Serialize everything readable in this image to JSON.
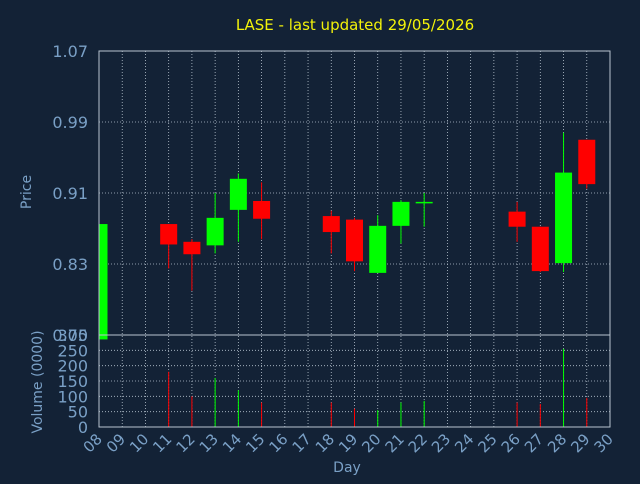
{
  "chart_data": {
    "type": "candlestick",
    "title": "LASE - last updated 29/05/2026",
    "price_panel": {
      "ylabel": "Price",
      "ylim": [
        0.75,
        1.07
      ],
      "yticks": [
        "1.07",
        "0.99",
        "0.91",
        "0.83",
        "0.75"
      ],
      "ytick_values": [
        1.07,
        0.99,
        0.91,
        0.83,
        0.75
      ],
      "grid": true
    },
    "volume_panel": {
      "ylabel": "Volume (0000)",
      "ylim": [
        0,
        300
      ],
      "yticks": [
        "300",
        "250",
        "200",
        "150",
        "100",
        "50",
        "0"
      ],
      "ytick_values": [
        300,
        250,
        200,
        150,
        100,
        50,
        0
      ],
      "grid": true
    },
    "xlabel": "Day",
    "x_ticks": [
      "08",
      "09",
      "10",
      "11",
      "12",
      "13",
      "14",
      "15",
      "16",
      "17",
      "18",
      "19",
      "20",
      "21",
      "22",
      "23",
      "24",
      "25",
      "26",
      "27",
      "28",
      "29",
      "30"
    ],
    "candles": [
      {
        "day": "08",
        "open": 0.745,
        "high": 0.875,
        "low": 0.745,
        "close": 0.875,
        "volume": 0
      },
      {
        "day": "11",
        "open": 0.875,
        "high": 0.875,
        "low": 0.825,
        "close": 0.852,
        "volume": 180
      },
      {
        "day": "12",
        "open": 0.855,
        "high": 0.858,
        "low": 0.8,
        "close": 0.841,
        "volume": 100
      },
      {
        "day": "13",
        "open": 0.851,
        "high": 0.91,
        "low": 0.842,
        "close": 0.882,
        "volume": 160
      },
      {
        "day": "14",
        "open": 0.891,
        "high": 0.932,
        "low": 0.855,
        "close": 0.926,
        "volume": 120
      },
      {
        "day": "15",
        "open": 0.901,
        "high": 0.922,
        "low": 0.858,
        "close": 0.881,
        "volume": 80
      },
      {
        "day": "18",
        "open": 0.884,
        "high": 0.89,
        "low": 0.842,
        "close": 0.866,
        "volume": 80
      },
      {
        "day": "19",
        "open": 0.88,
        "high": 0.882,
        "low": 0.822,
        "close": 0.833,
        "volume": 60
      },
      {
        "day": "20",
        "open": 0.82,
        "high": 0.885,
        "low": 0.82,
        "close": 0.873,
        "volume": 55
      },
      {
        "day": "21",
        "open": 0.873,
        "high": 0.902,
        "low": 0.853,
        "close": 0.9,
        "volume": 80
      },
      {
        "day": "22",
        "open": 0.9,
        "high": 0.91,
        "low": 0.872,
        "close": 0.9,
        "volume": 85
      },
      {
        "day": "26",
        "open": 0.889,
        "high": 0.9,
        "low": 0.855,
        "close": 0.872,
        "volume": 80
      },
      {
        "day": "27",
        "open": 0.872,
        "high": 0.872,
        "low": 0.821,
        "close": 0.822,
        "volume": 75
      },
      {
        "day": "28",
        "open": 0.831,
        "high": 0.978,
        "low": 0.821,
        "close": 0.933,
        "volume": 255
      },
      {
        "day": "29",
        "open": 0.97,
        "high": 0.97,
        "low": 0.915,
        "close": 0.92,
        "volume": 95
      }
    ],
    "colors": {
      "background": "#132236",
      "up": "#00ff00",
      "down": "#ff0000",
      "title": "#f2f20a",
      "axis_text": "#7aa0c6",
      "grid": "#b8c4d0"
    }
  }
}
